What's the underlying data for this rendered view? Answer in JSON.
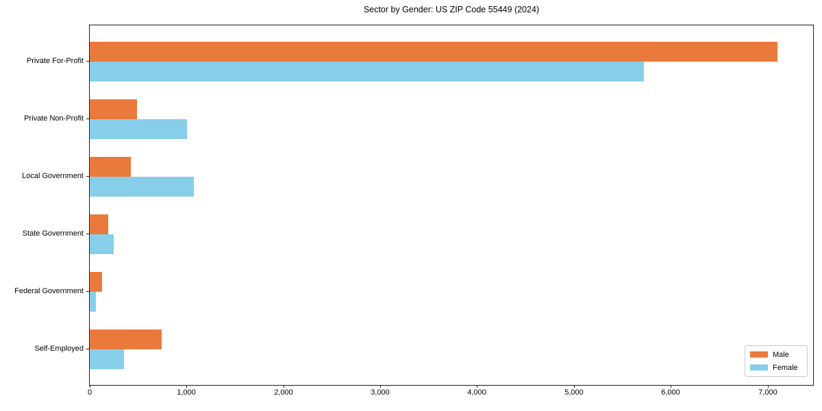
{
  "chart_data": {
    "type": "bar",
    "orientation": "horizontal",
    "title": "Sector by Gender: US ZIP Code 55449 (2024)",
    "categories": [
      "Private For-Profit",
      "Private Non-Profit",
      "Local Government",
      "State Government",
      "Federal Government",
      "Self-Employed"
    ],
    "series": [
      {
        "name": "Male",
        "color": "#e97a3c",
        "values": [
          7100,
          490,
          425,
          190,
          130,
          740
        ]
      },
      {
        "name": "Female",
        "color": "#87ceeb",
        "values": [
          5720,
          1005,
          1075,
          250,
          65,
          355
        ]
      }
    ],
    "xlabel": "",
    "ylabel": "",
    "xlim": [
      0,
      7470
    ],
    "x_ticks": [
      0,
      1000,
      2000,
      3000,
      4000,
      5000,
      6000,
      7000
    ],
    "x_tick_labels": [
      "0",
      "1,000",
      "2,000",
      "3,000",
      "4,000",
      "5,000",
      "6,000",
      "7,000"
    ],
    "grid": false,
    "legend_position": "lower right",
    "background_color": "#ffffff",
    "axis_color": "#1a1a1a"
  }
}
